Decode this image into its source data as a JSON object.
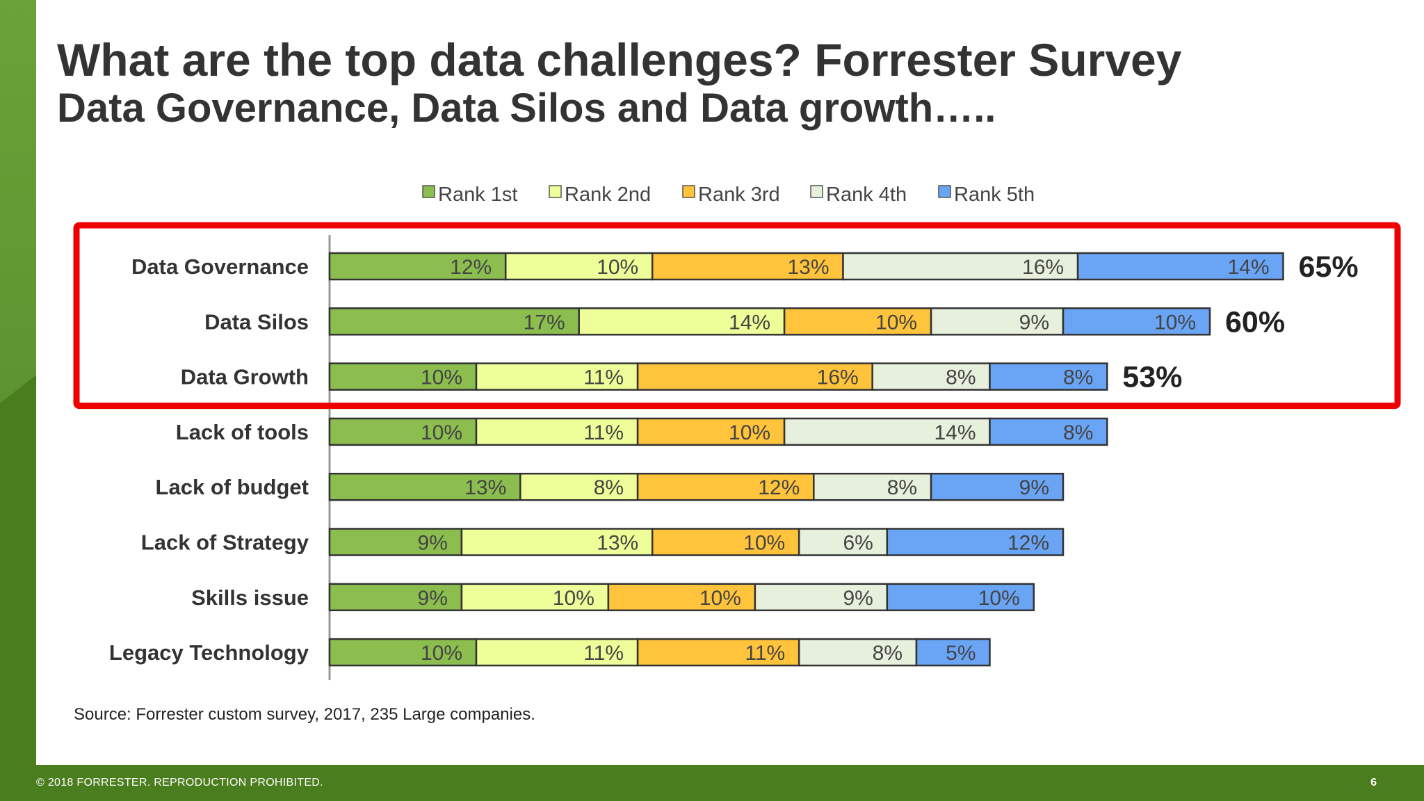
{
  "slide": {
    "title": "What are the top data challenges? Forrester Survey",
    "subtitle": "Data Governance, Data Silos and Data growth…..",
    "source": "Source: Forrester custom survey, 2017, 235 Large companies.",
    "footer": "© 2018 FORRESTER. REPRODUCTION PROHIBITED.",
    "page_number": "6"
  },
  "colors": {
    "series": [
      "#8bbd4f",
      "#eeff99",
      "#ffc43b",
      "#e6f0dc",
      "#6aa4f5"
    ],
    "highlight_box": "#ee0000",
    "green_band": "#4a7d1d"
  },
  "chart_data": {
    "type": "bar",
    "orientation": "horizontal",
    "stacked": true,
    "categories": [
      "Data Governance",
      "Data Silos",
      "Data Growth",
      "Lack of tools",
      "Lack of budget",
      "Lack of Strategy",
      "Skills issue",
      "Legacy Technology"
    ],
    "series": [
      {
        "name": "Rank 1st",
        "values": [
          12,
          17,
          10,
          10,
          13,
          9,
          9,
          10
        ]
      },
      {
        "name": "Rank 2nd",
        "values": [
          10,
          14,
          11,
          11,
          8,
          13,
          10,
          11
        ]
      },
      {
        "name": "Rank 3rd",
        "values": [
          13,
          10,
          16,
          10,
          12,
          10,
          10,
          11
        ]
      },
      {
        "name": "Rank 4th",
        "values": [
          16,
          9,
          8,
          14,
          8,
          6,
          9,
          8
        ]
      },
      {
        "name": "Rank 5th",
        "values": [
          14,
          10,
          8,
          8,
          9,
          12,
          10,
          5
        ]
      }
    ],
    "unit": "%",
    "totals": [
      {
        "category": "Data Governance",
        "label": "65%"
      },
      {
        "category": "Data Silos",
        "label": "60%"
      },
      {
        "category": "Data Growth",
        "label": "53%"
      }
    ],
    "highlighted_categories": [
      "Data Governance",
      "Data Silos",
      "Data Growth"
    ],
    "legend_position": "top",
    "grid": false
  }
}
